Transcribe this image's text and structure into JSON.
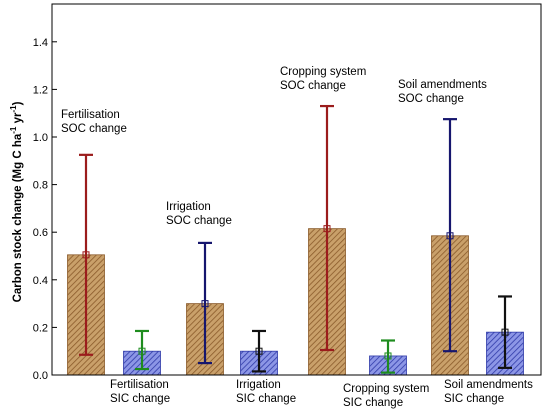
{
  "chart_data": {
    "type": "bar",
    "ylabel": "Carbon stock change (Mg C ha",
    "ylabel_sup1": "-1",
    "ylabel_mid": " yr",
    "ylabel_sup2": "-1",
    "ylabel_end": ")",
    "ylim": [
      0,
      1.5
    ],
    "yticks": [
      "0.0",
      "0.2",
      "0.4",
      "0.6",
      "0.8",
      "1.0",
      "1.2",
      "1.4"
    ],
    "yticks_values": [
      0,
      0.2,
      0.4,
      0.6,
      0.8,
      1.0,
      1.2,
      1.4
    ],
    "bars": [
      {
        "label_line1": "Fertilisation",
        "label_line2": "SOC change",
        "value": 0.505,
        "err_low": 0.085,
        "err_high": 0.925,
        "fill": "soc",
        "err_color": "#9b1c1c",
        "label_position": "above"
      },
      {
        "label_line1": "Fertilisation",
        "label_line2": "SIC change",
        "value": 0.1,
        "err_low": 0.025,
        "err_high": 0.185,
        "fill": "sic",
        "err_color": "#1e8c1e",
        "label_position": "below"
      },
      {
        "label_line1": "Irrigation",
        "label_line2": "SOC change",
        "value": 0.3,
        "err_low": 0.05,
        "err_high": 0.555,
        "fill": "soc",
        "err_color": "#16166e",
        "label_position": "above"
      },
      {
        "label_line1": "Irrigation",
        "label_line2": "SIC change",
        "value": 0.1,
        "err_low": 0.015,
        "err_high": 0.185,
        "fill": "sic",
        "err_color": "#111111",
        "label_position": "below"
      },
      {
        "label_line1": "Cropping system",
        "label_line2": "SOC change",
        "value": 0.615,
        "err_low": 0.105,
        "err_high": 1.13,
        "fill": "soc",
        "err_color": "#9b1c1c",
        "label_position": "above"
      },
      {
        "label_line1": "Cropping system",
        "label_line2": "SIC change",
        "value": 0.08,
        "err_low": 0.01,
        "err_high": 0.145,
        "fill": "sic",
        "err_color": "#1e8c1e",
        "label_position": "below"
      },
      {
        "label_line1": "Soil amendments",
        "label_line2": "SOC change",
        "value": 0.585,
        "err_low": 0.1,
        "err_high": 1.075,
        "fill": "soc",
        "err_color": "#16166e",
        "label_position": "above"
      },
      {
        "label_line1": "Soil amendments",
        "label_line2": "SIC change",
        "value": 0.18,
        "err_low": 0.03,
        "err_high": 0.33,
        "fill": "sic",
        "err_color": "#111111",
        "label_position": "below"
      }
    ],
    "colors": {
      "soc_fill": "#c9a06a",
      "soc_hatch": "#8a5a2a",
      "sic_fill": "#8c96e6",
      "sic_hatch": "#2f3aa8",
      "axis": "#000000"
    },
    "grid": false,
    "legend": "none"
  }
}
